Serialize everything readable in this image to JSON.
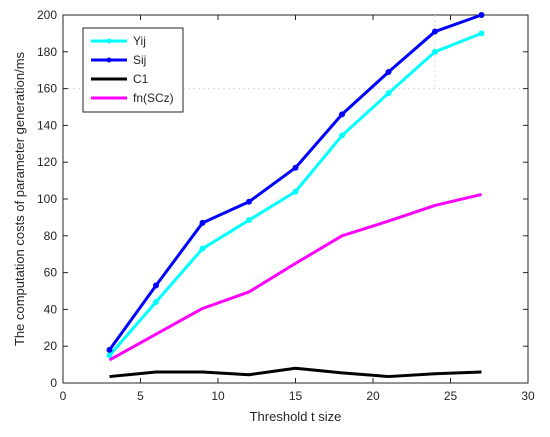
{
  "chart_data": {
    "type": "line",
    "title": "",
    "xlabel": "Threshold t size",
    "ylabel": "The computation costs of parameter generation/ms",
    "xlim": [
      0,
      30
    ],
    "ylim": [
      0,
      200
    ],
    "xticks": [
      0,
      5,
      10,
      15,
      20,
      25,
      30
    ],
    "yticks": [
      0,
      20,
      40,
      60,
      80,
      100,
      120,
      140,
      160,
      180,
      200
    ],
    "grid": false,
    "legend_position": "top-left",
    "x": [
      3,
      6,
      9,
      12,
      15,
      18,
      21,
      24,
      27
    ],
    "series": [
      {
        "name": "Yij",
        "color": "#00ffff",
        "marker": "dot",
        "values": [
          15,
          44,
          73,
          88.5,
          104,
          134.5,
          157.5,
          180,
          190
        ]
      },
      {
        "name": "Sij",
        "color": "#0000ff",
        "marker": "dot",
        "values": [
          18,
          53,
          87,
          98.5,
          117,
          146,
          169,
          191,
          200
        ]
      },
      {
        "name": "C1",
        "color": "#000000",
        "marker": "none",
        "values": [
          3.5,
          6,
          6,
          4.5,
          8,
          5.5,
          3.5,
          5,
          6
        ]
      },
      {
        "name": "fn(SCz)",
        "color": "#ff00ff",
        "marker": "none",
        "values": [
          12.5,
          26.5,
          40.5,
          49.5,
          65,
          80,
          88,
          96.5,
          102.5
        ]
      }
    ]
  }
}
